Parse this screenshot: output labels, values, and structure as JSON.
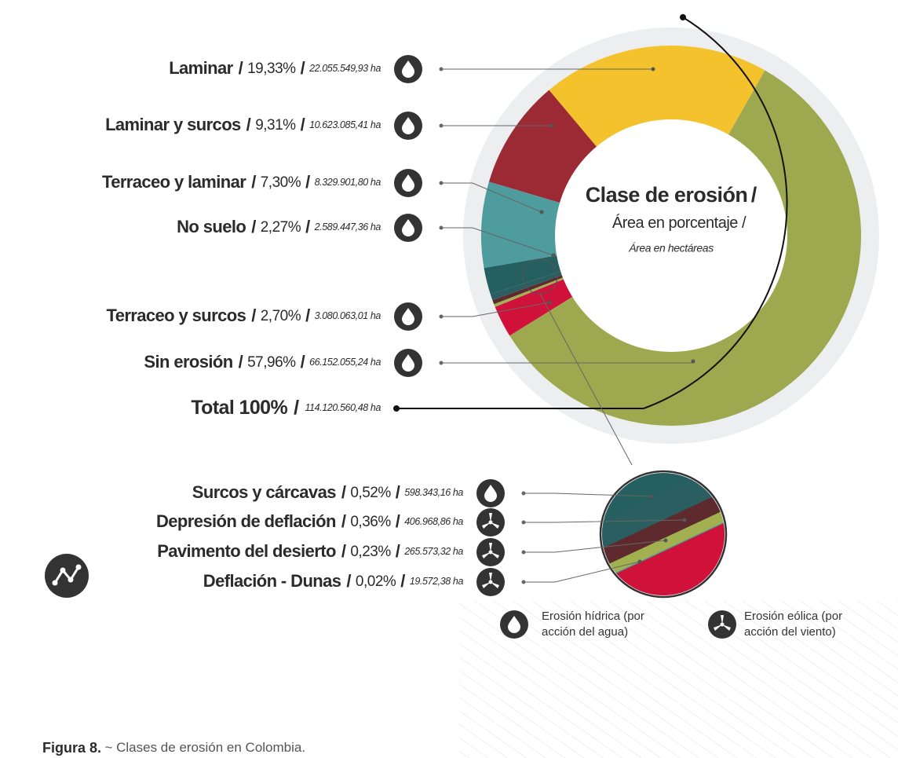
{
  "chart_data": {
    "type": "donut",
    "title": "Clase de erosión",
    "subtitle": "Área en porcentaje",
    "note": "Área en hectáreas",
    "separator": "/",
    "categories": [
      "Laminar",
      "Laminar y surcos",
      "Terraceo y laminar",
      "No suelo",
      "Terraceo y surcos",
      "Sin erosión",
      "Surcos y cárcavas",
      "Depresión de deflación",
      "Pavimento del desierto",
      "Deflación - Dunas"
    ],
    "values": [
      19.33,
      9.31,
      7.3,
      2.27,
      2.7,
      57.96,
      0.52,
      0.36,
      0.23,
      0.02
    ],
    "value_labels": [
      "19,33%",
      "9,31%",
      "7,30%",
      "2,27%",
      "2,70%",
      "57,96%",
      "0,52%",
      "0,36%",
      "0,23%",
      "0,02%"
    ],
    "areas": [
      {
        "value": 22055549.93,
        "label": "22.055.549,93 ha"
      },
      {
        "value": 10623085.41,
        "label": "10.623.085,41 ha"
      },
      {
        "value": 8329901.8,
        "label": "8.329.901,80 ha"
      },
      {
        "value": 2589447.36,
        "label": "2.589.447,36 ha"
      },
      {
        "value": 3080063.01,
        "label": "3.080.063,01 ha"
      },
      {
        "value": 66152055.24,
        "label": "66.152.055,24 ha"
      },
      {
        "value": 598343.16,
        "label": "598.343,16 ha"
      },
      {
        "value": 406968.86,
        "label": "406.968,86 ha"
      },
      {
        "value": 265573.32,
        "label": "265.573,32 ha"
      },
      {
        "value": 19572.38,
        "label": "19.572,38 ha"
      }
    ],
    "colors": [
      "#f3c22c",
      "#9b2a35",
      "#4e9c9e",
      "#255f5f",
      "#d0123a",
      "#9ea94f",
      "#2a5e60",
      "#5e2a2e",
      "#a3b04f",
      "#4e9c9e"
    ],
    "total_label": "Total 100%",
    "total_area": {
      "value": 114120560.48,
      "label": "114.120.560,48 ha"
    },
    "legend": [
      "Erosión hídrica (por acción del agua)",
      "Erosión eólica (por acción del viento)"
    ],
    "caption": {
      "figure": "Figura 8.",
      "text": "~ Clases de erosión en Colombia."
    }
  }
}
